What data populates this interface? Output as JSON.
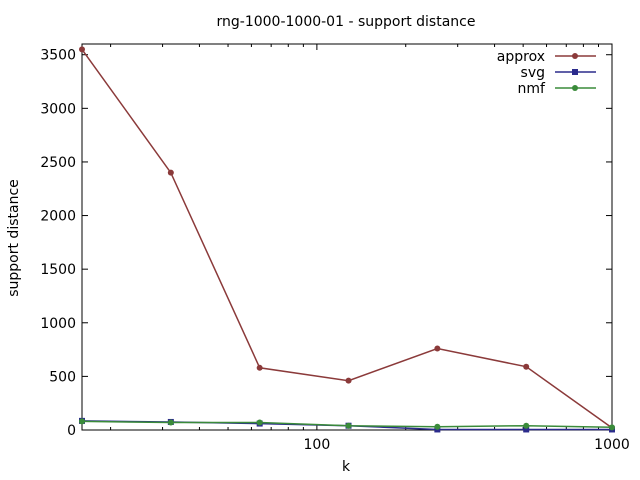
{
  "chart_data": {
    "type": "line",
    "title": "rng-1000-1000-01 - support distance",
    "xlabel": "k",
    "ylabel": "support distance",
    "xscale": "log",
    "xlim": [
      16,
      1000
    ],
    "ylim": [
      0,
      3600
    ],
    "xticks": [
      {
        "value": 100,
        "label": "100"
      },
      {
        "value": 1000,
        "label": "1000"
      }
    ],
    "yticks": [
      {
        "value": 0,
        "label": "0"
      },
      {
        "value": 500,
        "label": "500"
      },
      {
        "value": 1000,
        "label": "1000"
      },
      {
        "value": 1500,
        "label": "1500"
      },
      {
        "value": 2000,
        "label": "2000"
      },
      {
        "value": 2500,
        "label": "2500"
      },
      {
        "value": 3000,
        "label": "3000"
      },
      {
        "value": 3500,
        "label": "3500"
      }
    ],
    "grid": false,
    "legend_position": "top-right",
    "x": [
      16,
      32,
      64,
      128,
      256,
      512,
      1000
    ],
    "series": [
      {
        "name": "approx",
        "color": "#8b3a3a",
        "marker": "circle",
        "values": [
          3550,
          2400,
          580,
          460,
          760,
          590,
          20
        ]
      },
      {
        "name": "svg",
        "color": "#2b2b8c",
        "marker": "square",
        "values": [
          85,
          75,
          60,
          40,
          5,
          5,
          5
        ]
      },
      {
        "name": "nmf",
        "color": "#3a8b3a",
        "marker": "circle",
        "values": [
          80,
          70,
          70,
          40,
          30,
          40,
          25
        ]
      }
    ]
  }
}
